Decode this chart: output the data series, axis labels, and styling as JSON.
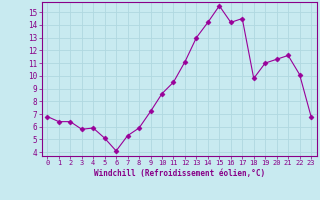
{
  "x": [
    0,
    1,
    2,
    3,
    4,
    5,
    6,
    7,
    8,
    9,
    10,
    11,
    12,
    13,
    14,
    15,
    16,
    17,
    18,
    19,
    20,
    21,
    22,
    23
  ],
  "y": [
    6.8,
    6.4,
    6.4,
    5.8,
    5.9,
    5.1,
    4.1,
    5.3,
    5.9,
    7.2,
    8.6,
    9.5,
    11.1,
    13.0,
    14.2,
    15.5,
    14.2,
    14.5,
    9.8,
    11.0,
    11.3,
    11.6,
    10.1,
    6.8
  ],
  "xlim_min": -0.5,
  "xlim_max": 23.5,
  "ylim_min": 3.7,
  "ylim_max": 15.8,
  "yticks": [
    4,
    5,
    6,
    7,
    8,
    9,
    10,
    11,
    12,
    13,
    14,
    15
  ],
  "xticks": [
    0,
    1,
    2,
    3,
    4,
    5,
    6,
    7,
    8,
    9,
    10,
    11,
    12,
    13,
    14,
    15,
    16,
    17,
    18,
    19,
    20,
    21,
    22,
    23
  ],
  "xlabel": "Windchill (Refroidissement éolien,°C)",
  "line_color": "#990099",
  "marker": "D",
  "marker_size": 2.5,
  "bg_color": "#c8eaf0",
  "grid_color": "#b0d8e0",
  "label_color": "#880088",
  "tick_color": "#880088",
  "figsize": [
    3.2,
    2.0
  ],
  "dpi": 100
}
